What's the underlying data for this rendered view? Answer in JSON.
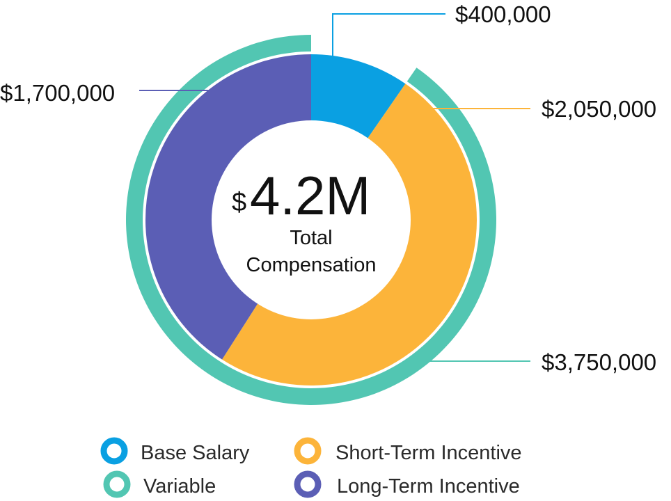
{
  "chart_data": {
    "type": "pie",
    "variant": "nested-donut",
    "center": {
      "currency": "$",
      "amount": "4.2M",
      "line1": "Total",
      "line2": "Compensation"
    },
    "inner_ring": [
      {
        "name": "Base Salary",
        "value": 400000,
        "label": "$400,000",
        "color": "#0aa0e2"
      },
      {
        "name": "Short-Term Incentive",
        "value": 2050000,
        "label": "$2,050,000",
        "color": "#fcb43a"
      },
      {
        "name": "Long-Term Incentive",
        "value": 1700000,
        "label": "$1,700,000",
        "color": "#5b5eb5"
      }
    ],
    "outer_ring": [
      {
        "name": "Base Salary",
        "value": 400000,
        "color": "#ffffff"
      },
      {
        "name": "Variable",
        "value": 3750000,
        "label": "$3,750,000",
        "color": "#52c6b2"
      }
    ],
    "legend": [
      {
        "label": "Base Salary",
        "color": "#0aa0e2"
      },
      {
        "label": "Short-Term Incentive",
        "color": "#fcb43a"
      },
      {
        "label": "Variable",
        "color": "#52c6b2"
      },
      {
        "label": "Long-Term Incentive",
        "color": "#5b5eb5"
      }
    ]
  }
}
